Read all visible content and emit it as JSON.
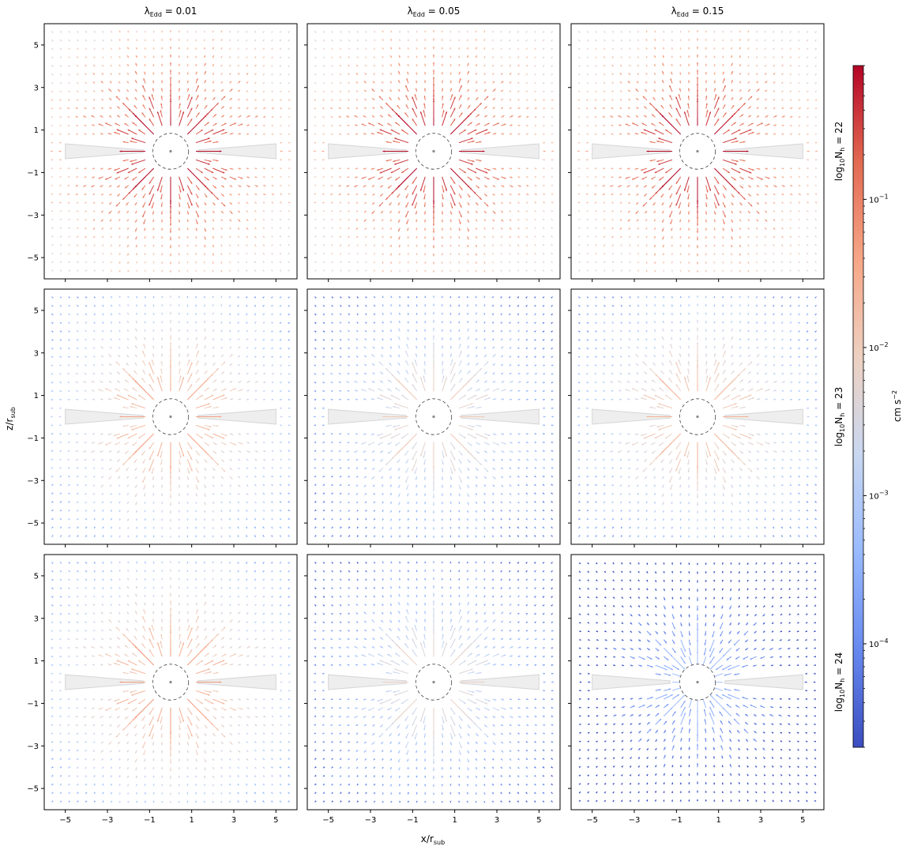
{
  "chart_data": {
    "type": "quiver",
    "grid": "3x3",
    "xlabel": "x/r",
    "xlabel_sub": "sub",
    "ylabel": "z/r",
    "ylabel_sub": "sub",
    "xlim": [
      -6,
      6
    ],
    "ylim": [
      -6,
      6
    ],
    "xticks": [
      -5,
      -3,
      -1,
      1,
      3,
      5
    ],
    "yticks": [
      5,
      3,
      1,
      -1,
      -3,
      -5
    ],
    "columns": [
      {
        "title_prefix": "λ",
        "title_sub": "Edd",
        "title_suffix": " = 0.01",
        "lambda_edd": 0.01
      },
      {
        "title_prefix": "λ",
        "title_sub": "Edd",
        "title_suffix": " = 0.05",
        "lambda_edd": 0.05
      },
      {
        "title_prefix": "λ",
        "title_sub": "Edd",
        "title_suffix": " = 0.15",
        "lambda_edd": 0.15
      }
    ],
    "rows": [
      {
        "label_prefix": "log",
        "label_sub1": "10",
        "label_mid": "N",
        "label_sub2": "h",
        "label_suffix": " = 22",
        "log_nh": 22
      },
      {
        "label_prefix": "log",
        "label_sub1": "10",
        "label_mid": "N",
        "label_sub2": "h",
        "label_suffix": " = 23",
        "log_nh": 23
      },
      {
        "label_prefix": "log",
        "label_sub1": "10",
        "label_mid": "N",
        "label_sub2": "h",
        "label_suffix": " = 24",
        "log_nh": 24
      }
    ],
    "panel_peak_magnitude": [
      [
        0.8,
        0.8,
        0.8
      ],
      [
        0.05,
        0.012,
        0.03
      ],
      [
        0.06,
        0.008,
        0.0008
      ]
    ],
    "field_direction": [
      [
        "outward",
        "outward",
        "outward"
      ],
      [
        "outward",
        "outward",
        "outward"
      ],
      [
        "outward",
        "outward",
        "inward"
      ]
    ],
    "inner_circle_radius": 0.85,
    "disk_torus": {
      "x_extent": 5,
      "half_thickness_at_edge": 0.35
    },
    "colorbar": {
      "scale": "log",
      "range": [
        2e-05,
        0.8
      ],
      "tick_values": [
        0.1,
        0.01,
        0.001,
        0.0001
      ],
      "tick_base": "10",
      "tick_exponents": [
        "−1",
        "−2",
        "−3",
        "−4"
      ],
      "label": "cm s",
      "label_exponent": "−2",
      "colormap": "coolwarm",
      "colors": [
        "#3b4cc0",
        "#6688ee",
        "#9abbff",
        "#c9d7f0",
        "#edd1c2",
        "#f7a889",
        "#e26952",
        "#b40426"
      ]
    }
  }
}
